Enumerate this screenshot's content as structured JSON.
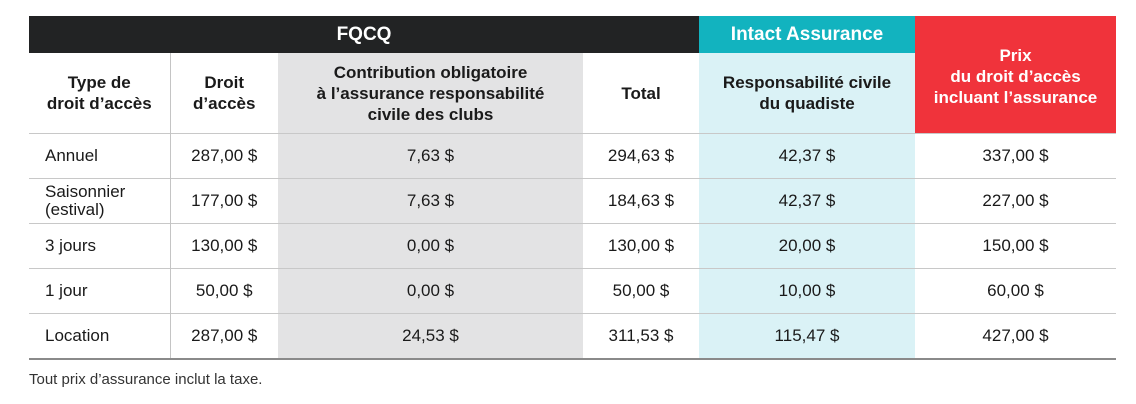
{
  "header": {
    "fqcq": "FQCQ",
    "intact": "Intact Assurance",
    "prix": "Prix\ndu droit d’accès\nincluant l’assurance"
  },
  "columns": {
    "type": "Type de\ndroit d’accès",
    "droit": "Droit\nd’accès",
    "contribution": "Contribution obligatoire\nà l’assurance responsabilité\ncivile des clubs",
    "total": "Total",
    "responsabilite": "Responsabilité civile\ndu quadiste"
  },
  "rows": [
    {
      "type": "Annuel",
      "droit": "287,00 $",
      "contribution": "7,63 $",
      "total": "294,63 $",
      "responsabilite": "42,37 $",
      "prix": "337,00 $"
    },
    {
      "type": "Saisonnier\n(estival)",
      "droit": "177,00 $",
      "contribution": "7,63 $",
      "total": "184,63 $",
      "responsabilite": "42,37 $",
      "prix": "227,00 $"
    },
    {
      "type": "3 jours",
      "droit": "130,00 $",
      "contribution": "0,00 $",
      "total": "130,00 $",
      "responsabilite": "20,00 $",
      "prix": "150,00 $"
    },
    {
      "type": "1 jour",
      "droit": "50,00 $",
      "contribution": "0,00 $",
      "total": "50,00 $",
      "responsabilite": "10,00 $",
      "prix": "60,00 $"
    },
    {
      "type": "Location",
      "droit": "287,00 $",
      "contribution": "24,53 $",
      "total": "311,53 $",
      "responsabilite": "115,47 $",
      "prix": "427,00 $"
    }
  ],
  "note": "Tout prix d’assurance inclut la taxe.",
  "colors": {
    "dark": "#222324",
    "intact": "#12b3bf",
    "prix": "#f0333b",
    "grey": "#e3e3e4",
    "cyan": "#daf2f6"
  }
}
